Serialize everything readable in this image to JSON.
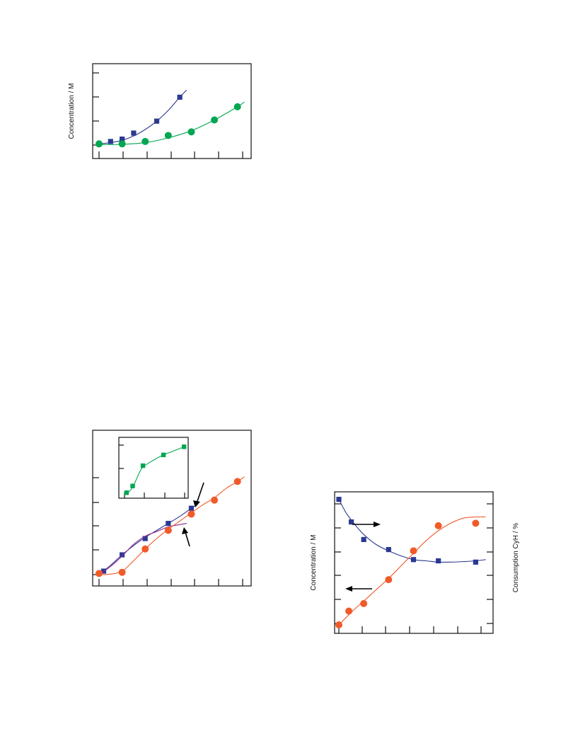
{
  "chart_data": [
    {
      "id": "top",
      "type": "scatter",
      "ylabel": "Concentration / M",
      "xlim": [
        0,
        6.5
      ],
      "ylim": [
        0,
        3.4
      ],
      "series": [
        {
          "color": "#2b3990",
          "marker": "square",
          "x": [
            0.5,
            1.0,
            1.5,
            2.5,
            3.5
          ],
          "y": [
            0.15,
            0.25,
            0.5,
            1.0,
            2.0
          ],
          "fit": [
            [
              0,
              0.05
            ],
            [
              0.5,
              0.1
            ],
            [
              1,
              0.2
            ],
            [
              1.5,
              0.38
            ],
            [
              2,
              0.65
            ],
            [
              2.5,
              1.0
            ],
            [
              3,
              1.45
            ],
            [
              3.5,
              2.0
            ],
            [
              3.8,
              2.3
            ]
          ]
        },
        {
          "color": "#00a651",
          "marker": "circle",
          "x": [
            0.0,
            1.0,
            2.0,
            3.0,
            4.0,
            5.0,
            6.0
          ],
          "y": [
            0.05,
            0.05,
            0.15,
            0.4,
            0.55,
            1.05,
            1.6
          ],
          "fit": [
            [
              0,
              0.02
            ],
            [
              1,
              0.03
            ],
            [
              2,
              0.1
            ],
            [
              3,
              0.3
            ],
            [
              4,
              0.6
            ],
            [
              5,
              1.05
            ],
            [
              6,
              1.6
            ],
            [
              6.3,
              1.8
            ]
          ]
        }
      ]
    },
    {
      "id": "middle",
      "type": "scatter",
      "xlim": [
        0,
        6.5
      ],
      "ylim": [
        0,
        6.2
      ],
      "series": [
        {
          "color": "#2b3990",
          "marker": "square",
          "x": [
            0.2,
            1.0,
            2.0,
            3.0,
            4.0
          ],
          "y": [
            0.15,
            0.85,
            1.55,
            2.2,
            2.85
          ],
          "fit": [
            [
              0,
              0
            ],
            [
              0.5,
              0.4
            ],
            [
              1,
              0.85
            ],
            [
              1.5,
              1.25
            ],
            [
              2,
              1.6
            ],
            [
              2.5,
              1.9
            ],
            [
              3,
              2.2
            ],
            [
              3.5,
              2.5
            ],
            [
              4,
              2.85
            ],
            [
              4.3,
              3.05
            ]
          ]
        },
        {
          "color": "#92278f",
          "marker": "none",
          "x": [],
          "y": [],
          "fit": [
            [
              0,
              0
            ],
            [
              0.5,
              0.35
            ],
            [
              1,
              0.8
            ],
            [
              1.5,
              1.3
            ],
            [
              2,
              1.65
            ],
            [
              2.5,
              1.85
            ],
            [
              3,
              2.05
            ],
            [
              3.5,
              2.15
            ],
            [
              3.8,
              2.2
            ]
          ]
        },
        {
          "color": "#f15a29",
          "marker": "circle",
          "x": [
            0.0,
            1.0,
            2.0,
            3.0,
            4.0,
            5.0,
            6.0
          ],
          "y": [
            0.05,
            0.1,
            1.1,
            1.9,
            2.6,
            3.2,
            4.0
          ],
          "fit": [
            [
              0,
              0
            ],
            [
              0.5,
              0.02
            ],
            [
              1,
              0.15
            ],
            [
              1.5,
              0.6
            ],
            [
              2,
              1.1
            ],
            [
              2.5,
              1.55
            ],
            [
              3,
              1.95
            ],
            [
              3.5,
              2.3
            ],
            [
              4,
              2.65
            ],
            [
              4.5,
              3.0
            ],
            [
              5,
              3.3
            ],
            [
              5.5,
              3.7
            ],
            [
              6,
              4.0
            ],
            [
              6.3,
              4.2
            ]
          ]
        }
      ]
    },
    {
      "id": "inset",
      "type": "scatter",
      "xlim": [
        0,
        3.2
      ],
      "ylim": [
        0,
        2.2
      ],
      "series": [
        {
          "color": "#00a651",
          "marker": "square",
          "x": [
            0.2,
            0.5,
            1.0,
            2.0,
            3.0
          ],
          "y": [
            0.15,
            0.4,
            1.15,
            1.55,
            1.85
          ],
          "fit": [
            [
              0.2,
              0.1
            ],
            [
              0.5,
              0.35
            ],
            [
              0.8,
              0.85
            ],
            [
              1,
              1.1
            ],
            [
              1.5,
              1.35
            ],
            [
              2,
              1.55
            ],
            [
              2.5,
              1.7
            ],
            [
              3,
              1.85
            ]
          ]
        }
      ]
    },
    {
      "id": "bottom",
      "type": "scatter",
      "ylabel": "Concentration / M",
      "y2label": "Consumption CyH / %",
      "xlim": [
        0,
        6.2
      ],
      "ylim": [
        0,
        5.3
      ],
      "series": [
        {
          "color": "#2b3990",
          "marker": "square",
          "x": [
            0.0,
            0.5,
            1.0,
            2.0,
            3.0,
            4.0,
            5.5
          ],
          "y": [
            5.0,
            4.1,
            3.4,
            3.0,
            2.6,
            2.55,
            2.5
          ],
          "fit": [
            [
              0,
              5.0
            ],
            [
              0.3,
              4.45
            ],
            [
              0.6,
              4.05
            ],
            [
              1,
              3.6
            ],
            [
              1.5,
              3.2
            ],
            [
              2,
              2.95
            ],
            [
              2.5,
              2.75
            ],
            [
              3,
              2.6
            ],
            [
              3.5,
              2.55
            ],
            [
              4,
              2.5
            ],
            [
              4.5,
              2.5
            ],
            [
              5,
              2.52
            ],
            [
              5.5,
              2.55
            ],
            [
              5.9,
              2.6
            ]
          ]
        },
        {
          "color": "#f15a29",
          "marker": "circle",
          "x": [
            0.0,
            0.4,
            1.0,
            2.0,
            3.0,
            4.0,
            5.5
          ],
          "y": [
            0.0,
            0.55,
            0.85,
            1.8,
            2.95,
            3.95,
            4.05
          ],
          "fit": [
            [
              0,
              0
            ],
            [
              0.5,
              0.5
            ],
            [
              1,
              0.95
            ],
            [
              1.5,
              1.4
            ],
            [
              2,
              1.85
            ],
            [
              2.5,
              2.35
            ],
            [
              3,
              2.85
            ],
            [
              3.5,
              3.35
            ],
            [
              4,
              3.75
            ],
            [
              4.5,
              4.05
            ],
            [
              5,
              4.25
            ],
            [
              5.5,
              4.3
            ],
            [
              5.9,
              4.3
            ]
          ]
        }
      ]
    }
  ]
}
